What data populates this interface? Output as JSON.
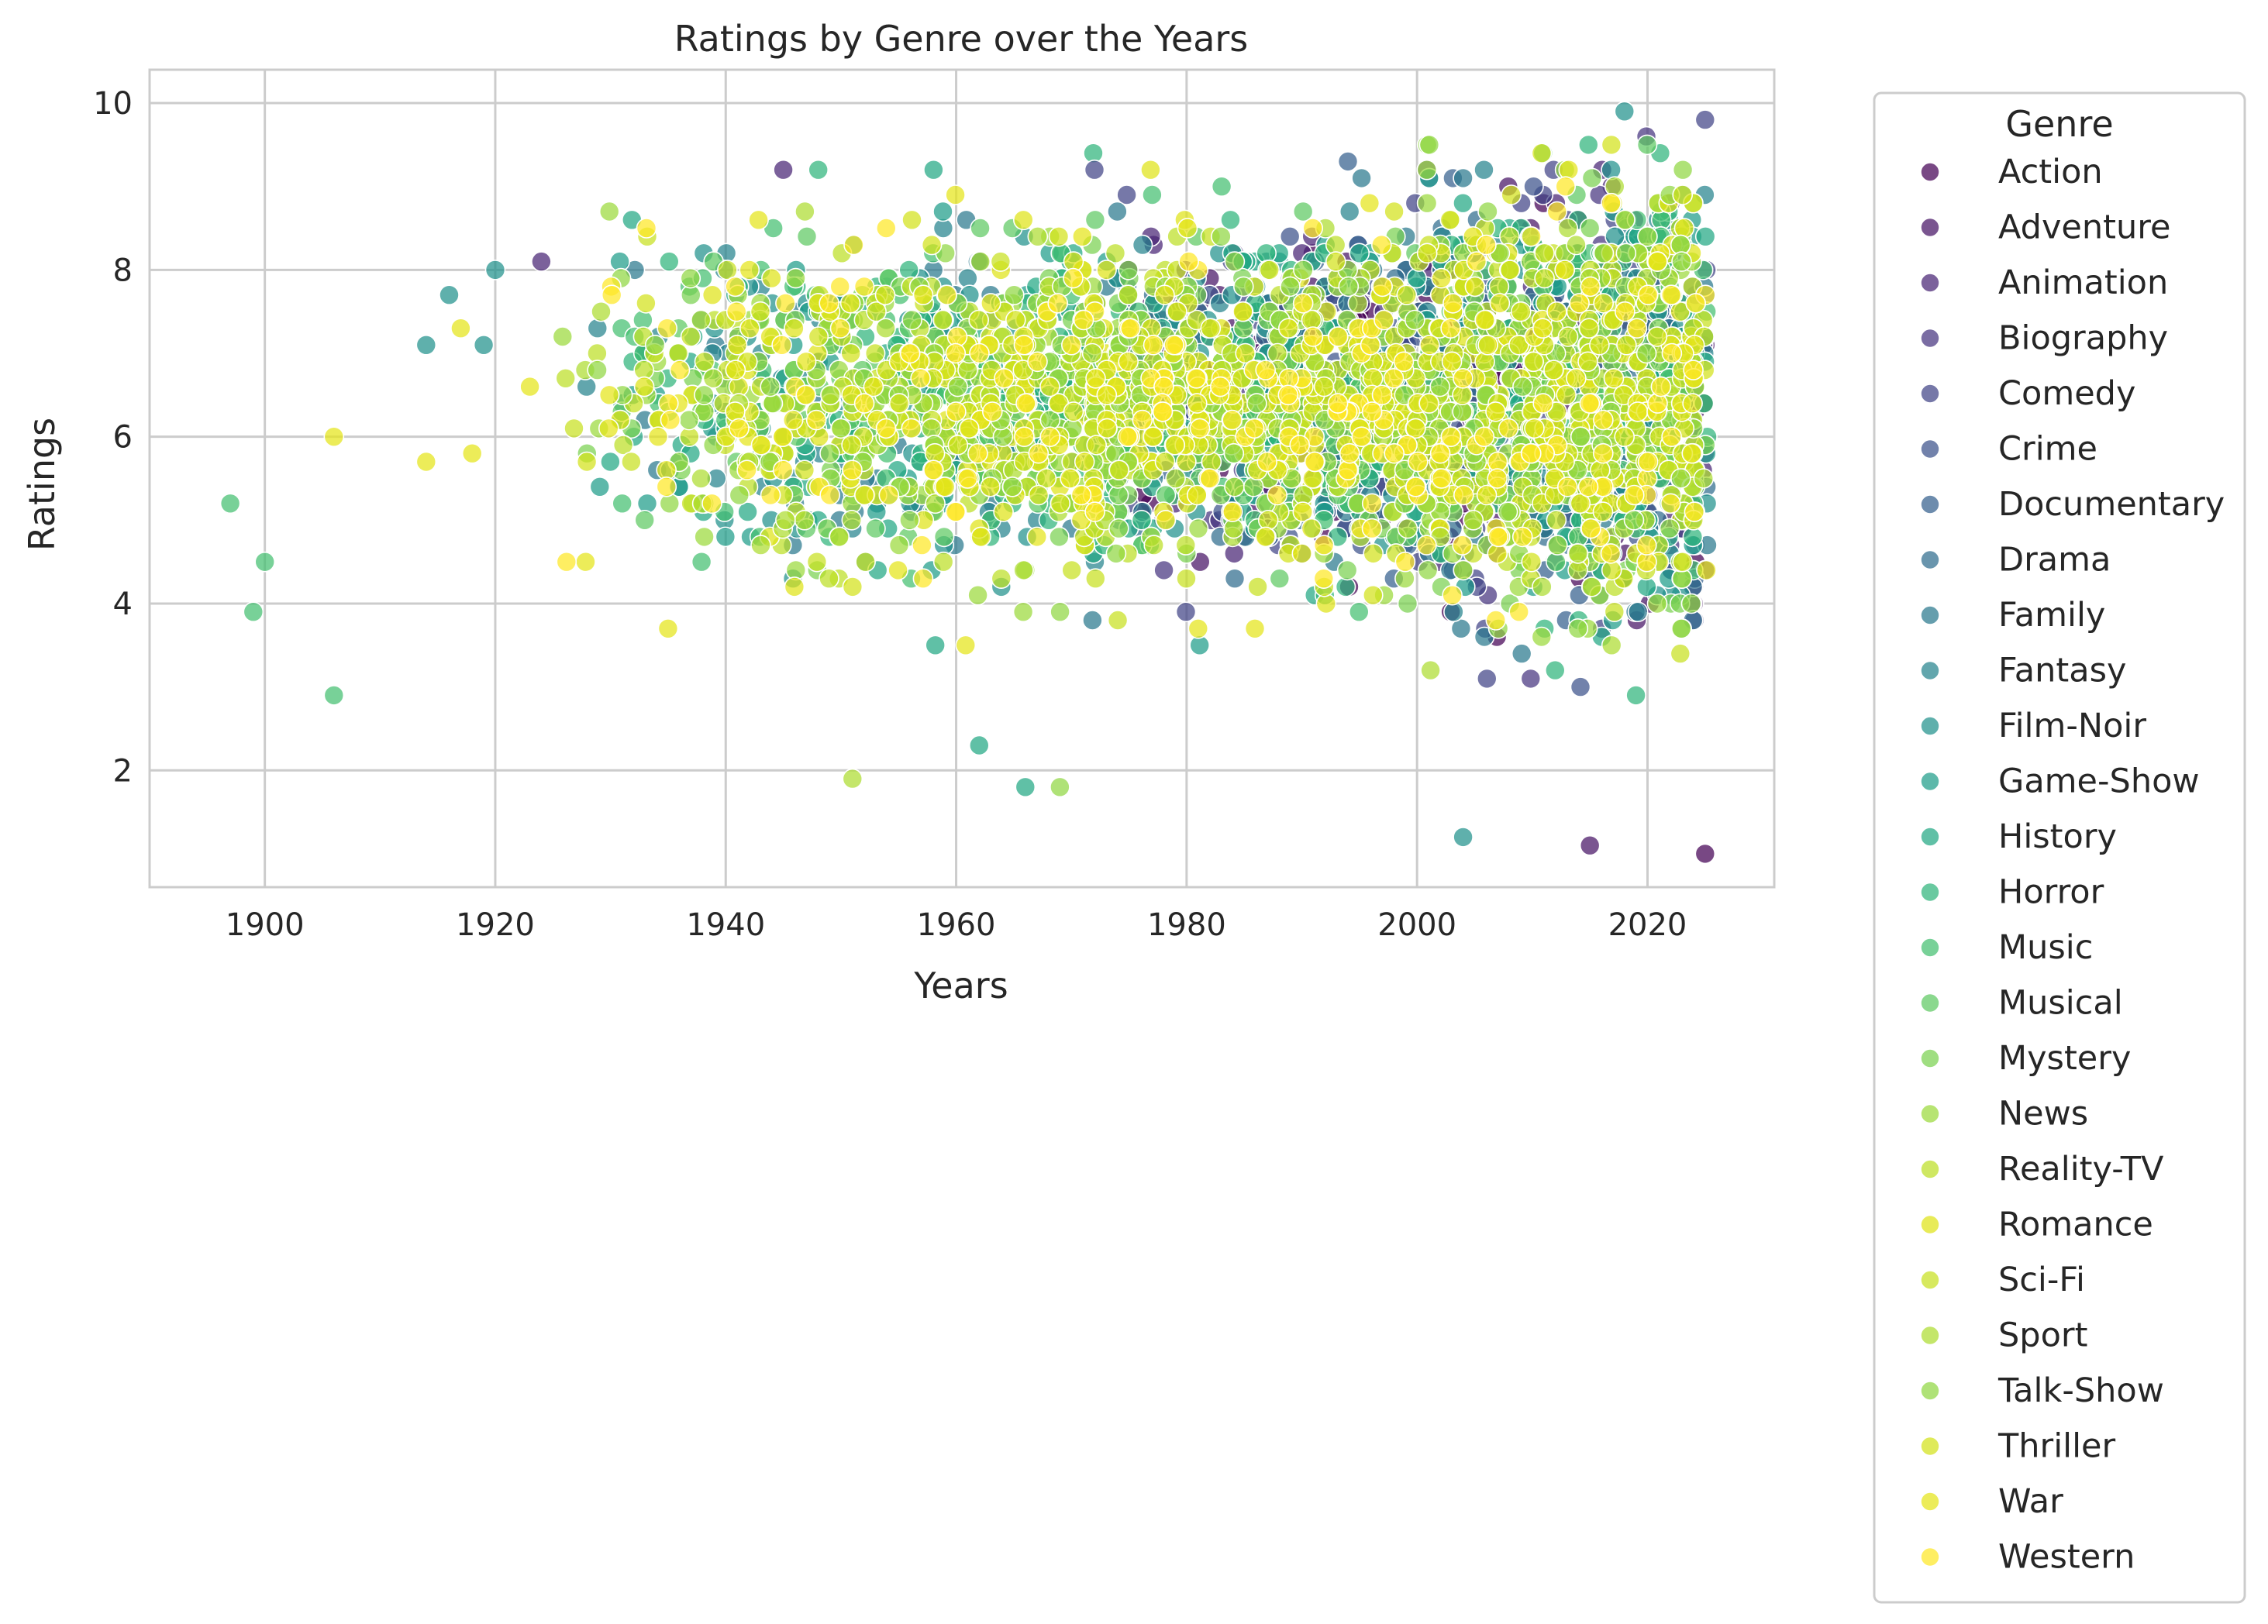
{
  "chart_data": {
    "type": "scatter",
    "title": "Ratings by Genre over the Years",
    "xlabel": "Years",
    "ylabel": "Ratings",
    "xlim": [
      1890,
      2031
    ],
    "ylim": [
      0.6,
      10.4
    ],
    "xticks": [
      1900,
      1920,
      1940,
      1960,
      1980,
      2000,
      2020
    ],
    "yticks": [
      2,
      4,
      6,
      8,
      10
    ],
    "grid": true,
    "legend": {
      "title": "Genre",
      "placement": "outside-right"
    },
    "series": [
      {
        "name": "Action",
        "color": "#440154"
      },
      {
        "name": "Adventure",
        "color": "#471365"
      },
      {
        "name": "Animation",
        "color": "#482475"
      },
      {
        "name": "Biography",
        "color": "#463480"
      },
      {
        "name": "Comedy",
        "color": "#414487"
      },
      {
        "name": "Crime",
        "color": "#3b528b"
      },
      {
        "name": "Documentary",
        "color": "#355f8d"
      },
      {
        "name": "Drama",
        "color": "#2f6c8e"
      },
      {
        "name": "Family",
        "color": "#2a788e"
      },
      {
        "name": "Fantasy",
        "color": "#25848e"
      },
      {
        "name": "Film-Noir",
        "color": "#21918c"
      },
      {
        "name": "Game-Show",
        "color": "#1e9c89"
      },
      {
        "name": "History",
        "color": "#22a884"
      },
      {
        "name": "Horror",
        "color": "#2fb47c"
      },
      {
        "name": "Music",
        "color": "#44bf70"
      },
      {
        "name": "Musical",
        "color": "#5ec962"
      },
      {
        "name": "Mystery",
        "color": "#7ad151"
      },
      {
        "name": "News",
        "color": "#9bd93c"
      },
      {
        "name": "Reality-TV",
        "color": "#bddf26"
      },
      {
        "name": "Romance",
        "color": "#dfe318"
      },
      {
        "name": "Sci-Fi",
        "color": "#c8e020"
      },
      {
        "name": "Sport",
        "color": "#addc30"
      },
      {
        "name": "Talk-Show",
        "color": "#90d743"
      },
      {
        "name": "Thriller",
        "color": "#d2e21b"
      },
      {
        "name": "War",
        "color": "#e5e419"
      },
      {
        "name": "Western",
        "color": "#fde725"
      }
    ],
    "outlier_points": [
      {
        "x": 1897,
        "y": 5.2,
        "series": "Music"
      },
      {
        "x": 1899,
        "y": 3.9,
        "series": "Music"
      },
      {
        "x": 1900,
        "y": 4.5,
        "series": "Music"
      },
      {
        "x": 1906,
        "y": 2.9,
        "series": "Music"
      },
      {
        "x": 1906,
        "y": 6.0,
        "series": "War"
      },
      {
        "x": 1914,
        "y": 5.7,
        "series": "War"
      },
      {
        "x": 1914,
        "y": 7.1,
        "series": "Film-Noir"
      },
      {
        "x": 1916,
        "y": 7.7,
        "series": "Film-Noir"
      },
      {
        "x": 1917,
        "y": 7.3,
        "series": "War"
      },
      {
        "x": 1918,
        "y": 5.8,
        "series": "War"
      },
      {
        "x": 1919,
        "y": 7.1,
        "series": "Film-Noir"
      },
      {
        "x": 1920,
        "y": 8.0,
        "series": "Film-Noir"
      },
      {
        "x": 1923,
        "y": 6.6,
        "series": "War"
      },
      {
        "x": 1924,
        "y": 8.1,
        "series": "Animation"
      },
      {
        "x": 1935,
        "y": 3.7,
        "series": "War"
      },
      {
        "x": 1945,
        "y": 9.2,
        "series": "Animation"
      },
      {
        "x": 1951,
        "y": 1.9,
        "series": "Sport"
      },
      {
        "x": 1962,
        "y": 2.3,
        "series": "History"
      },
      {
        "x": 1966,
        "y": 1.8,
        "series": "History"
      },
      {
        "x": 1969,
        "y": 1.8,
        "series": "Talk-Show"
      },
      {
        "x": 1972,
        "y": 9.2,
        "series": "Comedy"
      },
      {
        "x": 1994,
        "y": 9.3,
        "series": "Documentary"
      },
      {
        "x": 2004,
        "y": 1.2,
        "series": "Film-Noir"
      },
      {
        "x": 2015,
        "y": 1.1,
        "series": "Adventure"
      },
      {
        "x": 2018,
        "y": 9.9,
        "series": "Film-Noir"
      },
      {
        "x": 2025,
        "y": 1.0,
        "series": "Action"
      },
      {
        "x": 2025,
        "y": 9.8,
        "series": "Comedy"
      }
    ]
  }
}
